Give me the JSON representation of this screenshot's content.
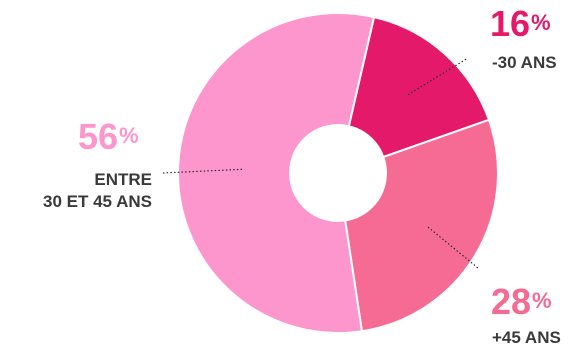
{
  "chart_data": {
    "type": "pie",
    "style": "donut",
    "categories": [
      "-30 ANS",
      "+45 ANS",
      "ENTRE 30 ET 45 ANS"
    ],
    "values": [
      16,
      28,
      56
    ],
    "unit": "%",
    "colors": [
      "#e5196a",
      "#f56b93",
      "#fc96cc"
    ],
    "slices": [
      {
        "key": "under30",
        "value": 16,
        "value_text": "16",
        "unit": "%",
        "label": "-30 ANS",
        "color": "#e5196a"
      },
      {
        "key": "over45",
        "value": 28,
        "value_text": "28",
        "unit": "%",
        "label": "+45 ANS",
        "color": "#f56b93"
      },
      {
        "key": "between",
        "value": 56,
        "value_text": "56",
        "unit": "%",
        "label_lines": [
          "ENTRE",
          "30 ET 45 ANS"
        ],
        "color": "#fc96cc"
      }
    ]
  }
}
